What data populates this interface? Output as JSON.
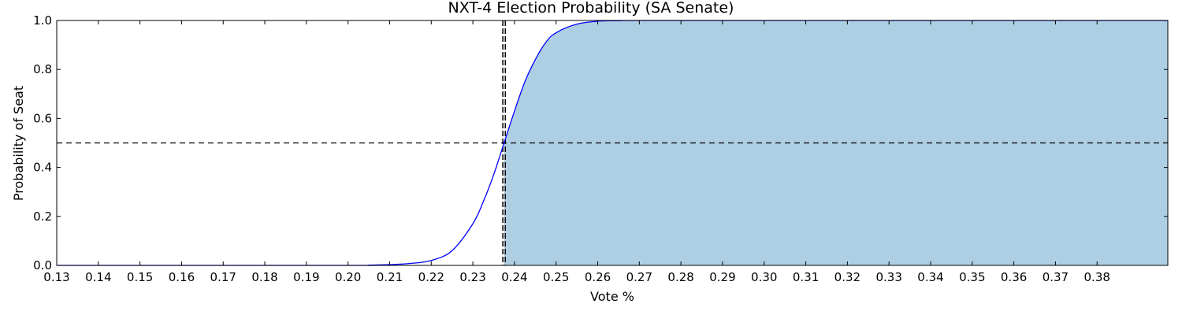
{
  "chart_data": {
    "type": "line",
    "title": "NXT-4 Election Probability (SA Senate)",
    "xlabel": "Vote %",
    "ylabel": "Probability of Seat",
    "xlim": [
      0.13,
      0.397
    ],
    "ylim": [
      0.0,
      1.0
    ],
    "x_ticks": [
      "0.13",
      "0.14",
      "0.15",
      "0.16",
      "0.17",
      "0.18",
      "0.19",
      "0.20",
      "0.21",
      "0.22",
      "0.23",
      "0.24",
      "0.25",
      "0.26",
      "0.27",
      "0.28",
      "0.29",
      "0.30",
      "0.31",
      "0.32",
      "0.33",
      "0.34",
      "0.35",
      "0.36",
      "0.37",
      "0.38"
    ],
    "y_ticks": [
      "0.0",
      "0.2",
      "0.4",
      "0.6",
      "0.8",
      "1.0"
    ],
    "grid": false,
    "series": [
      {
        "x": [
          0.13,
          0.2,
          0.205,
          0.21,
          0.215,
          0.22,
          0.225,
          0.23,
          0.2325,
          0.235,
          0.2375,
          0.24,
          0.2425,
          0.245,
          0.2475,
          0.25,
          0.255,
          0.26,
          0.265,
          0.27,
          0.3,
          0.35,
          0.397
        ],
        "y": [
          0.0,
          0.0,
          0.001,
          0.003,
          0.008,
          0.02,
          0.06,
          0.17,
          0.26,
          0.37,
          0.5,
          0.63,
          0.75,
          0.84,
          0.91,
          0.95,
          0.985,
          0.997,
          0.999,
          1.0,
          1.0,
          1.0,
          1.0
        ],
        "color": "#0000ff"
      }
    ],
    "fill_region": {
      "x_from": 0.2375,
      "color": "#aecfe3"
    },
    "reference_lines": [
      {
        "orientation": "horizontal",
        "value": 0.5,
        "style": "dashed",
        "color": "#000000"
      },
      {
        "orientation": "vertical",
        "value": 0.2372,
        "style": "dashed",
        "color": "#000000"
      },
      {
        "orientation": "vertical",
        "value": 0.2378,
        "style": "dashed",
        "color": "#000000"
      }
    ]
  }
}
